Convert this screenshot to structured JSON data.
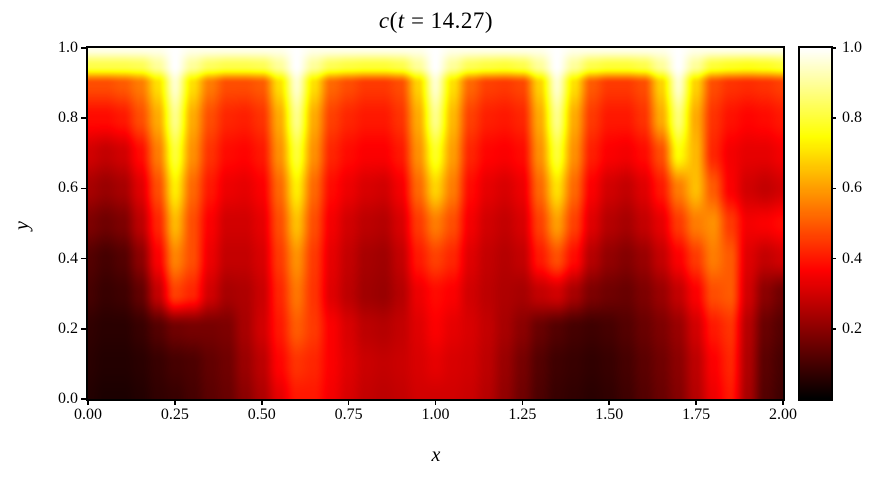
{
  "title": "c(t = 14.27)",
  "x_axis": {
    "label": "x",
    "ticks": [
      {
        "v": 0.0,
        "label": "0.00"
      },
      {
        "v": 0.25,
        "label": "0.25"
      },
      {
        "v": 0.5,
        "label": "0.50"
      },
      {
        "v": 0.75,
        "label": "0.75"
      },
      {
        "v": 1.0,
        "label": "1.00"
      },
      {
        "v": 1.25,
        "label": "1.25"
      },
      {
        "v": 1.5,
        "label": "1.50"
      },
      {
        "v": 1.75,
        "label": "1.75"
      },
      {
        "v": 2.0,
        "label": "2.00"
      }
    ]
  },
  "y_axis": {
    "label": "y",
    "ticks": [
      {
        "v": 0.0,
        "label": "0.0"
      },
      {
        "v": 0.2,
        "label": "0.2"
      },
      {
        "v": 0.4,
        "label": "0.4"
      },
      {
        "v": 0.6,
        "label": "0.6"
      },
      {
        "v": 0.8,
        "label": "0.8"
      },
      {
        "v": 1.0,
        "label": "1.0"
      }
    ]
  },
  "colorbar": {
    "vmin": 0.0,
    "vmax": 1.0,
    "colormap": "hot",
    "ticks": [
      {
        "v": 0.2,
        "label": "0.2"
      },
      {
        "v": 0.4,
        "label": "0.4"
      },
      {
        "v": 0.6,
        "label": "0.6"
      },
      {
        "v": 0.8,
        "label": "0.8"
      },
      {
        "v": 1.0,
        "label": "1.0"
      }
    ]
  },
  "chart_data": {
    "type": "heatmap",
    "title": "c(t = 14.27)",
    "xlabel": "x",
    "ylabel": "y",
    "xlim": [
      0.0,
      2.0
    ],
    "ylim": [
      0.0,
      1.0
    ],
    "vmin": 0.0,
    "vmax": 1.0,
    "colormap": "hot",
    "legend": "none",
    "grid": false,
    "plume_x_positions": [
      0.25,
      0.6,
      1.01,
      1.36,
      1.68
    ],
    "grid_x": [
      0.0,
      0.05,
      0.1,
      0.15,
      0.2,
      0.25,
      0.3,
      0.35,
      0.4,
      0.45,
      0.5,
      0.55,
      0.6,
      0.65,
      0.7,
      0.75,
      0.8,
      0.85,
      0.9,
      0.95,
      1.0,
      1.05,
      1.1,
      1.15,
      1.2,
      1.25,
      1.3,
      1.35,
      1.4,
      1.45,
      1.5,
      1.55,
      1.6,
      1.65,
      1.7,
      1.75,
      1.8,
      1.85,
      1.9,
      1.95,
      2.0
    ],
    "grid_y": [
      1.0,
      0.95,
      0.9,
      0.8,
      0.7,
      0.6,
      0.5,
      0.4,
      0.3,
      0.2,
      0.1,
      0.0
    ],
    "values": [
      [
        0.98,
        0.98,
        0.98,
        0.98,
        0.98,
        1.0,
        0.98,
        0.98,
        0.98,
        0.98,
        0.98,
        0.98,
        1.0,
        0.98,
        0.98,
        0.98,
        0.98,
        0.98,
        0.98,
        0.98,
        1.0,
        0.98,
        0.98,
        0.98,
        0.98,
        0.98,
        0.98,
        1.0,
        0.98,
        0.98,
        0.98,
        0.98,
        0.98,
        0.98,
        1.0,
        0.98,
        0.98,
        0.98,
        0.98,
        0.98,
        0.98
      ],
      [
        0.82,
        0.82,
        0.82,
        0.83,
        0.9,
        1.0,
        0.9,
        0.84,
        0.82,
        0.82,
        0.83,
        0.9,
        1.0,
        0.9,
        0.83,
        0.81,
        0.8,
        0.8,
        0.82,
        0.9,
        1.0,
        0.9,
        0.83,
        0.81,
        0.8,
        0.82,
        0.9,
        1.0,
        0.9,
        0.82,
        0.8,
        0.8,
        0.82,
        0.9,
        1.0,
        0.9,
        0.8,
        0.78,
        0.77,
        0.78,
        0.8
      ],
      [
        0.48,
        0.48,
        0.5,
        0.55,
        0.7,
        0.95,
        0.7,
        0.55,
        0.48,
        0.48,
        0.5,
        0.7,
        0.95,
        0.7,
        0.52,
        0.48,
        0.45,
        0.45,
        0.48,
        0.68,
        0.95,
        0.7,
        0.52,
        0.46,
        0.45,
        0.47,
        0.68,
        0.95,
        0.7,
        0.5,
        0.45,
        0.45,
        0.48,
        0.68,
        0.95,
        0.68,
        0.48,
        0.44,
        0.43,
        0.44,
        0.46
      ],
      [
        0.38,
        0.38,
        0.4,
        0.48,
        0.62,
        0.88,
        0.62,
        0.48,
        0.42,
        0.41,
        0.44,
        0.62,
        0.88,
        0.62,
        0.46,
        0.42,
        0.4,
        0.4,
        0.44,
        0.62,
        0.88,
        0.64,
        0.46,
        0.41,
        0.4,
        0.42,
        0.62,
        0.88,
        0.62,
        0.45,
        0.4,
        0.4,
        0.44,
        0.62,
        0.86,
        0.62,
        0.44,
        0.39,
        0.37,
        0.38,
        0.4
      ],
      [
        0.3,
        0.28,
        0.3,
        0.38,
        0.55,
        0.8,
        0.58,
        0.44,
        0.38,
        0.37,
        0.4,
        0.58,
        0.8,
        0.58,
        0.42,
        0.38,
        0.36,
        0.36,
        0.4,
        0.58,
        0.78,
        0.6,
        0.42,
        0.37,
        0.36,
        0.38,
        0.58,
        0.8,
        0.58,
        0.41,
        0.36,
        0.35,
        0.38,
        0.48,
        0.75,
        0.64,
        0.42,
        0.35,
        0.33,
        0.33,
        0.35
      ],
      [
        0.24,
        0.22,
        0.24,
        0.32,
        0.48,
        0.72,
        0.52,
        0.4,
        0.34,
        0.33,
        0.36,
        0.52,
        0.72,
        0.52,
        0.38,
        0.34,
        0.31,
        0.3,
        0.35,
        0.52,
        0.68,
        0.55,
        0.38,
        0.33,
        0.31,
        0.34,
        0.52,
        0.7,
        0.52,
        0.36,
        0.3,
        0.28,
        0.32,
        0.4,
        0.55,
        0.65,
        0.5,
        0.36,
        0.3,
        0.28,
        0.3
      ],
      [
        0.18,
        0.16,
        0.18,
        0.27,
        0.42,
        0.64,
        0.48,
        0.36,
        0.3,
        0.3,
        0.33,
        0.48,
        0.65,
        0.48,
        0.35,
        0.3,
        0.27,
        0.26,
        0.31,
        0.45,
        0.55,
        0.48,
        0.35,
        0.3,
        0.28,
        0.31,
        0.46,
        0.6,
        0.46,
        0.32,
        0.26,
        0.24,
        0.28,
        0.33,
        0.45,
        0.55,
        0.58,
        0.45,
        0.35,
        0.36,
        0.38
      ],
      [
        0.12,
        0.1,
        0.12,
        0.2,
        0.36,
        0.56,
        0.48,
        0.34,
        0.28,
        0.28,
        0.31,
        0.45,
        0.58,
        0.45,
        0.33,
        0.28,
        0.24,
        0.23,
        0.28,
        0.4,
        0.46,
        0.42,
        0.32,
        0.28,
        0.26,
        0.28,
        0.4,
        0.48,
        0.38,
        0.26,
        0.21,
        0.19,
        0.22,
        0.28,
        0.36,
        0.45,
        0.55,
        0.5,
        0.32,
        0.28,
        0.3
      ],
      [
        0.1,
        0.08,
        0.09,
        0.14,
        0.28,
        0.46,
        0.42,
        0.3,
        0.24,
        0.25,
        0.29,
        0.42,
        0.54,
        0.44,
        0.32,
        0.27,
        0.23,
        0.22,
        0.26,
        0.34,
        0.38,
        0.36,
        0.3,
        0.27,
        0.25,
        0.24,
        0.28,
        0.3,
        0.24,
        0.18,
        0.16,
        0.15,
        0.18,
        0.22,
        0.28,
        0.36,
        0.48,
        0.5,
        0.3,
        0.2,
        0.16
      ],
      [
        0.07,
        0.06,
        0.06,
        0.08,
        0.12,
        0.16,
        0.17,
        0.17,
        0.18,
        0.24,
        0.3,
        0.4,
        0.5,
        0.45,
        0.36,
        0.31,
        0.27,
        0.26,
        0.28,
        0.32,
        0.36,
        0.33,
        0.31,
        0.28,
        0.24,
        0.2,
        0.15,
        0.12,
        0.1,
        0.09,
        0.1,
        0.12,
        0.15,
        0.18,
        0.22,
        0.3,
        0.4,
        0.44,
        0.26,
        0.15,
        0.12
      ],
      [
        0.06,
        0.05,
        0.05,
        0.06,
        0.08,
        0.1,
        0.11,
        0.14,
        0.16,
        0.22,
        0.27,
        0.37,
        0.44,
        0.42,
        0.36,
        0.32,
        0.29,
        0.28,
        0.29,
        0.31,
        0.33,
        0.31,
        0.3,
        0.27,
        0.22,
        0.17,
        0.12,
        0.09,
        0.08,
        0.07,
        0.08,
        0.1,
        0.13,
        0.16,
        0.2,
        0.27,
        0.36,
        0.42,
        0.25,
        0.13,
        0.1
      ],
      [
        0.05,
        0.04,
        0.04,
        0.05,
        0.07,
        0.08,
        0.1,
        0.13,
        0.15,
        0.2,
        0.25,
        0.33,
        0.4,
        0.4,
        0.35,
        0.31,
        0.28,
        0.27,
        0.28,
        0.3,
        0.3,
        0.3,
        0.29,
        0.26,
        0.21,
        0.16,
        0.11,
        0.08,
        0.07,
        0.06,
        0.07,
        0.09,
        0.12,
        0.15,
        0.19,
        0.26,
        0.34,
        0.4,
        0.24,
        0.12,
        0.09
      ]
    ]
  }
}
